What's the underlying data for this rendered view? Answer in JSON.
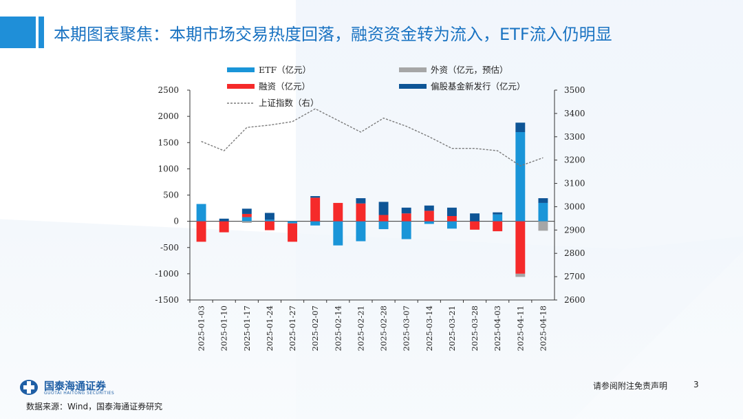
{
  "slide": {
    "title": "本期图表聚焦：本期市场交易热度回落，融资资金转为流入，ETF流入仍明显",
    "source": "数据来源：Wind，国泰海通证券研究",
    "disclaimer": "请参阅附注免责声明",
    "page_number": "3",
    "logo_cn": "国泰海通证券",
    "logo_en": "GUOTAI HAITONG SECURITIES",
    "colors": {
      "title": "#1a73c2",
      "accent_bar": "#1f8fd8"
    }
  },
  "chart_data": {
    "type": "bar",
    "stacked": true,
    "categories": [
      "2025-01-03",
      "2025-01-10",
      "2025-01-17",
      "2025-01-24",
      "2025-01-27",
      "2025-02-07",
      "2025-02-14",
      "2025-02-21",
      "2025-02-28",
      "2025-03-07",
      "2025-03-14",
      "2025-03-21",
      "2025-03-28",
      "2025-04-03",
      "2025-04-11",
      "2025-04-18"
    ],
    "y_left": {
      "min": -1500,
      "max": 2500,
      "ticks": [
        -1500,
        -1000,
        -500,
        0,
        500,
        1000,
        1500,
        2000,
        2500
      ]
    },
    "y_right": {
      "min": 2600,
      "max": 3500,
      "ticks": [
        2600,
        2700,
        2800,
        2900,
        3000,
        3100,
        3200,
        3300,
        3400,
        3500
      ]
    },
    "legend": [
      "ETF（亿元）",
      "外资（亿元，预估）",
      "融资（亿元）",
      "偏股基金新发行（亿元）",
      "上证指数（右）"
    ],
    "series": [
      {
        "name": "ETF（亿元）",
        "color": "#1a95d8",
        "axis": "left",
        "values": [
          330,
          0,
          80,
          30,
          -40,
          -80,
          -460,
          -380,
          -150,
          -340,
          -50,
          -140,
          0,
          130,
          1700,
          350
        ]
      },
      {
        "name": "融资（亿元）",
        "color": "#f52a2a",
        "axis": "left",
        "values": [
          -390,
          -210,
          60,
          -170,
          -350,
          450,
          350,
          340,
          120,
          150,
          200,
          100,
          -160,
          -190,
          -1000,
          0
        ]
      },
      {
        "name": "外资（亿元，预估）",
        "color": "#a6a6a6",
        "axis": "left",
        "values": [
          0,
          0,
          -30,
          0,
          0,
          0,
          0,
          0,
          0,
          0,
          0,
          0,
          0,
          0,
          -60,
          -180
        ]
      },
      {
        "name": "偏股基金新发行（亿元）",
        "color": "#0e5596",
        "axis": "left",
        "values": [
          0,
          50,
          100,
          130,
          0,
          30,
          0,
          100,
          250,
          110,
          100,
          160,
          150,
          40,
          180,
          90
        ]
      },
      {
        "name": "上证指数（右）",
        "color": "#7a7a7a",
        "axis": "right",
        "type": "line",
        "dashed": true,
        "values": [
          3280,
          3240,
          3340,
          3350,
          3365,
          3420,
          3370,
          3320,
          3380,
          3345,
          3300,
          3250,
          3250,
          3240,
          3175,
          3210
        ]
      }
    ]
  }
}
